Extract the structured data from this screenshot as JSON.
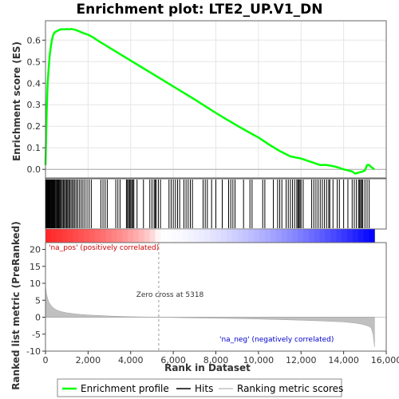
{
  "chart_data": {
    "type": "line",
    "title": "Enrichment plot: LTE2_UP.V1_DN",
    "top_panel": {
      "ylabel": "Enrichment score (ES)",
      "ylim": [
        -0.04,
        0.69
      ],
      "yticks": [
        0.0,
        0.1,
        0.2,
        0.3,
        0.4,
        0.5,
        0.6
      ],
      "ytick_labels": [
        "0.0",
        "0.1",
        "0.2",
        "0.3",
        "0.4",
        "0.5",
        "0.6"
      ],
      "grid": true,
      "series": [
        {
          "name": "Enrichment profile",
          "color": "#00ff00",
          "x": [
            0,
            30,
            60,
            100,
            150,
            200,
            250,
            300,
            350,
            420,
            500,
            600,
            700,
            800,
            900,
            1000,
            1100,
            1200,
            1300,
            1400,
            1600,
            1800,
            2000,
            2200,
            2500,
            3000,
            3500,
            4000,
            4500,
            5000,
            5500,
            6000,
            6500,
            7000,
            7500,
            8000,
            8500,
            9000,
            9500,
            10000,
            10500,
            11000,
            11500,
            12000,
            12300,
            12600,
            12900,
            13200,
            13500,
            13700,
            14000,
            14200,
            14400,
            14550,
            14700,
            14900,
            15000,
            15100,
            15200,
            15300,
            15450
          ],
          "y": [
            0.02,
            0.15,
            0.28,
            0.4,
            0.47,
            0.53,
            0.57,
            0.6,
            0.62,
            0.635,
            0.64,
            0.645,
            0.65,
            0.65,
            0.65,
            0.652,
            0.65,
            0.652,
            0.65,
            0.648,
            0.64,
            0.632,
            0.625,
            0.615,
            0.595,
            0.565,
            0.535,
            0.505,
            0.475,
            0.445,
            0.415,
            0.385,
            0.355,
            0.325,
            0.293,
            0.262,
            0.232,
            0.203,
            0.175,
            0.148,
            0.115,
            0.085,
            0.06,
            0.05,
            0.04,
            0.03,
            0.02,
            0.02,
            0.015,
            0.01,
            0.0,
            -0.005,
            -0.01,
            -0.02,
            -0.015,
            -0.01,
            -0.005,
            0.02,
            0.02,
            0.01,
            0.0
          ]
        }
      ],
      "baseline": 0.0
    },
    "hits_panel": {
      "hits": [
        20,
        45,
        70,
        95,
        120,
        145,
        170,
        195,
        220,
        250,
        280,
        310,
        340,
        370,
        400,
        430,
        460,
        500,
        540,
        580,
        620,
        660,
        700,
        740,
        790,
        840,
        890,
        940,
        990,
        1040,
        1090,
        1140,
        1200,
        1260,
        1320,
        1380,
        1450,
        1520,
        1600,
        1680,
        1760,
        1850,
        1950,
        2050,
        2150,
        2600,
        2700,
        2800,
        2900,
        3300,
        3400,
        3500,
        3800,
        3850,
        3900,
        3950,
        4000,
        4050,
        4100,
        4150,
        4300,
        4600,
        4900,
        5000,
        5100,
        5150,
        5200,
        5300,
        5400,
        5800,
        5900,
        6000,
        6100,
        6200,
        6300,
        6500,
        6600,
        6700,
        6800,
        6900,
        7400,
        7500,
        7600,
        7800,
        8000,
        8300,
        8600,
        8700,
        8800,
        8900,
        9300,
        9600,
        9700,
        10200,
        10300,
        10700,
        10900,
        11000,
        11100,
        11300,
        11400,
        11500,
        11600,
        11700,
        11800,
        11850,
        11900,
        11950,
        12000,
        12100,
        12500,
        12600,
        12700,
        12800,
        12900,
        13000,
        13100,
        13200,
        13300,
        13350,
        13500,
        13700,
        13800,
        14000,
        14200,
        14400,
        14500,
        14600,
        14700,
        14750,
        14800,
        14850,
        14900,
        15000,
        15100,
        15200
      ]
    },
    "gradient_bar": {
      "pos_label": "'na_pos' (positively correlated)",
      "neg_label": "'na_neg' (negatively correlated)",
      "pos_color": "#ff0000",
      "neg_color": "#0000ff",
      "pos_label_color": "#cc0000",
      "neg_label_color": "#0000cc"
    },
    "bottom_panel": {
      "ylabel": "Ranked list metric (PreRanked)",
      "xlabel": "Rank in Dataset",
      "ylim": [
        -10,
        22
      ],
      "yticks": [
        -10,
        -5,
        0,
        5,
        10,
        15,
        20
      ],
      "ytick_labels": [
        "-10",
        "-5",
        "0",
        "5",
        "10",
        "15",
        "20"
      ],
      "metric_color": "#c0c0c0",
      "metric": {
        "x": [
          0,
          10,
          30,
          60,
          100,
          150,
          200,
          300,
          400,
          500,
          700,
          1000,
          1500,
          2000,
          3000,
          4000,
          5000,
          5318,
          6000,
          7000,
          8000,
          9000,
          10000,
          11000,
          12000,
          13000,
          14000,
          14500,
          14800,
          15000,
          15200,
          15300,
          15380,
          15450
        ],
        "y": [
          12,
          9,
          7.5,
          6.5,
          5.5,
          4.6,
          4,
          3.2,
          2.6,
          2.2,
          1.7,
          1.3,
          0.9,
          0.65,
          0.35,
          0.15,
          0.05,
          0,
          -0.1,
          -0.2,
          -0.3,
          -0.4,
          -0.55,
          -0.7,
          -0.9,
          -1.1,
          -1.4,
          -1.7,
          -2,
          -2.3,
          -2.7,
          -3.3,
          -5,
          -8.8
        ]
      },
      "zero_cross_label": "Zero cross at 5318",
      "zero_cross": 5318
    },
    "xaxis": {
      "xlim": [
        0,
        16000
      ],
      "xticks": [
        0,
        2000,
        4000,
        6000,
        8000,
        10000,
        12000,
        14000,
        16000
      ],
      "xtick_labels": [
        "0",
        "2,000",
        "4,000",
        "6,000",
        "8,000",
        "10,000",
        "12,000",
        "14,000",
        "16,000"
      ],
      "n_genes": 15450
    },
    "legend": {
      "placement": "bottom",
      "items": [
        {
          "label": "Enrichment profile",
          "color": "#00ff00"
        },
        {
          "label": "Hits",
          "color": "#000000"
        },
        {
          "label": "Ranking metric scores",
          "color": "#c0c0c0"
        }
      ]
    }
  }
}
